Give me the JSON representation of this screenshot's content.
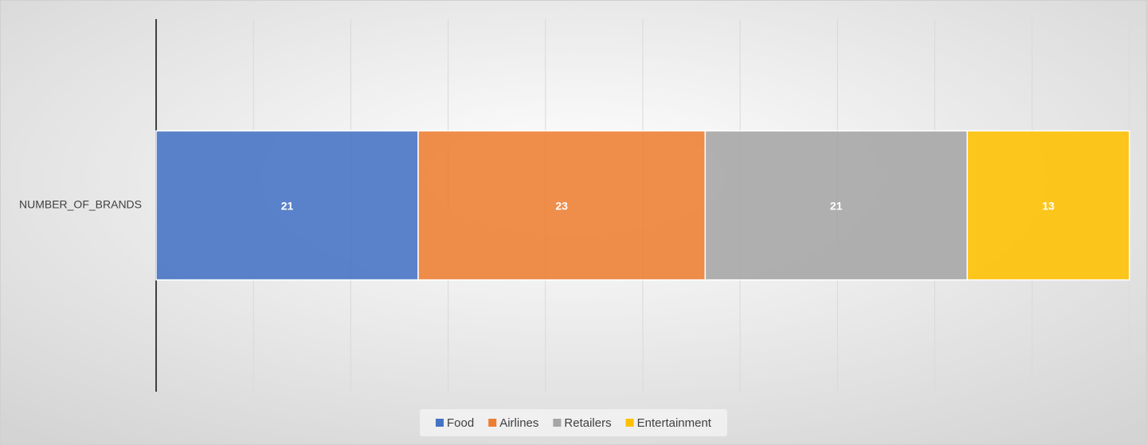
{
  "chart_data": {
    "type": "bar",
    "orientation": "horizontal",
    "stacked": true,
    "categories": [
      "NUMBER_OF_BRANDS"
    ],
    "series": [
      {
        "name": "Food",
        "color": "#4472c4",
        "values": [
          21
        ]
      },
      {
        "name": "Airlines",
        "color": "#ed7d31",
        "values": [
          23
        ]
      },
      {
        "name": "Retailers",
        "color": "#a5a5a5",
        "values": [
          21
        ]
      },
      {
        "name": "Entertainment",
        "color": "#ffc000",
        "values": [
          13
        ]
      }
    ],
    "xlim": [
      0,
      78
    ],
    "xticks": [
      0,
      7.8,
      15.6,
      23.4,
      31.2,
      39,
      46.8,
      54.6,
      62.4,
      70.2,
      78
    ],
    "grid": true,
    "legend": "bottom"
  }
}
